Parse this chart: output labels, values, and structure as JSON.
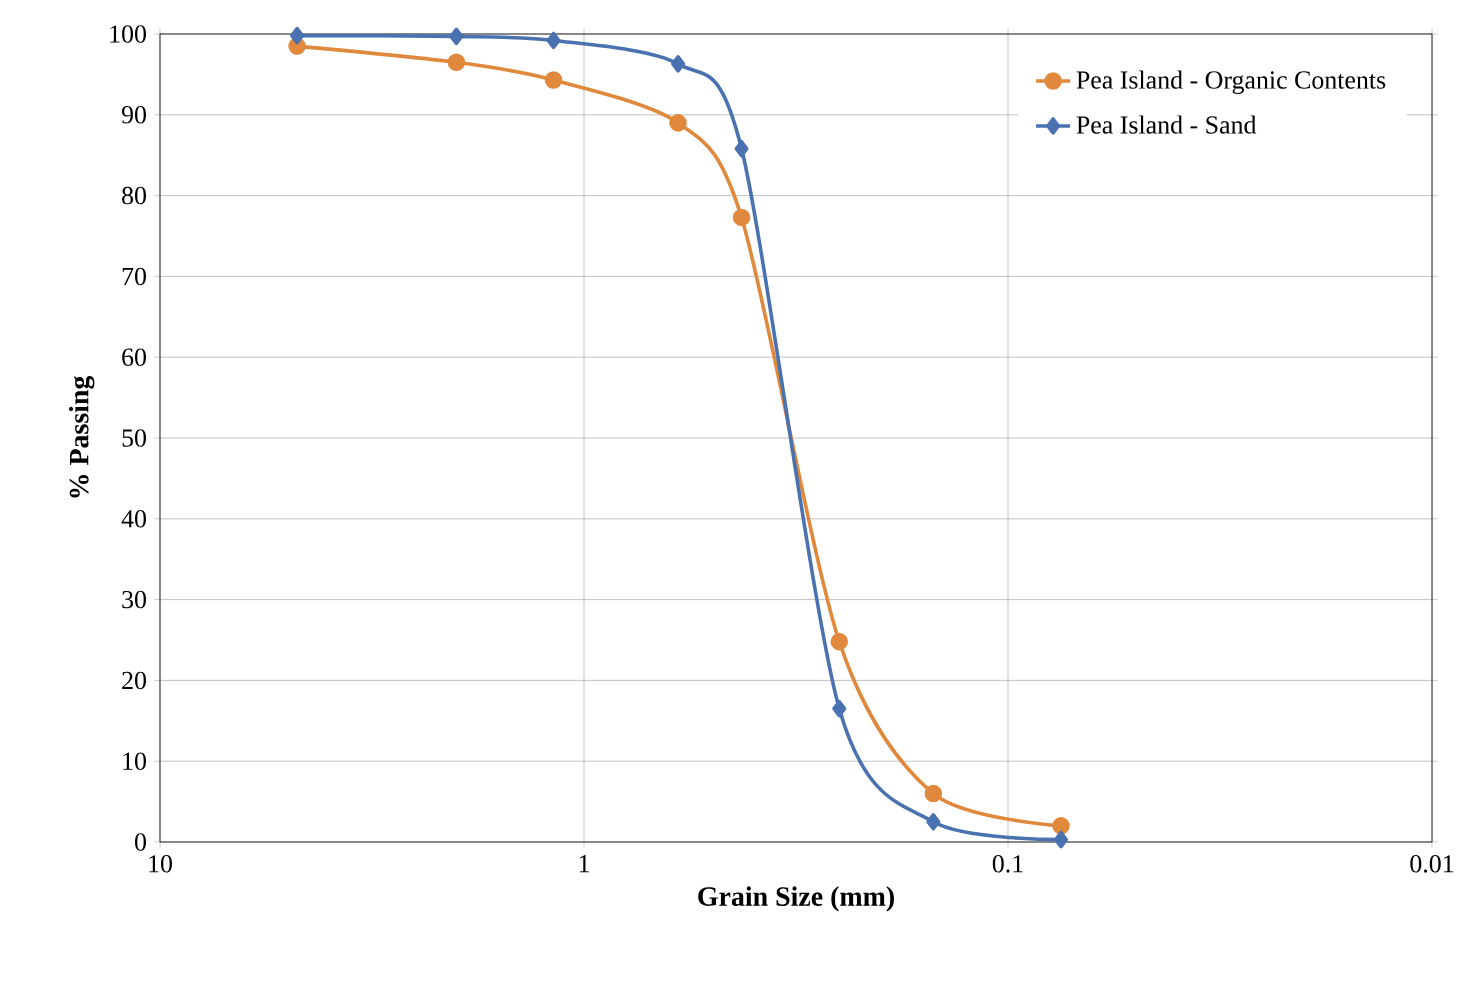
{
  "chart_data": {
    "type": "line",
    "xlabel": "Grain Size (mm)",
    "ylabel": "% Passing",
    "log": "x",
    "xlim": [
      10,
      0.01
    ],
    "xticks": [
      10,
      1,
      0.1,
      0.01
    ],
    "ylim": [
      0,
      100
    ],
    "yticks": [
      0,
      10,
      20,
      30,
      40,
      50,
      60,
      70,
      80,
      90,
      100
    ],
    "grid": true,
    "legend": "top right",
    "x": [
      4.75,
      2.0,
      1.18,
      0.6,
      0.425,
      0.25,
      0.15,
      0.075
    ],
    "series": [
      {
        "name": "Pea Island - Organic Contents",
        "color": "#e0893c",
        "marker": "circle",
        "values": [
          98.5,
          96.5,
          94.3,
          89,
          77.3,
          24.8,
          6,
          2
        ]
      },
      {
        "name": "Pea Island - Sand",
        "color": "#4a72b0",
        "marker": "diamond",
        "values": [
          99.8,
          99.7,
          99.2,
          96.3,
          85.8,
          16.5,
          2.5,
          0.3
        ]
      }
    ]
  }
}
